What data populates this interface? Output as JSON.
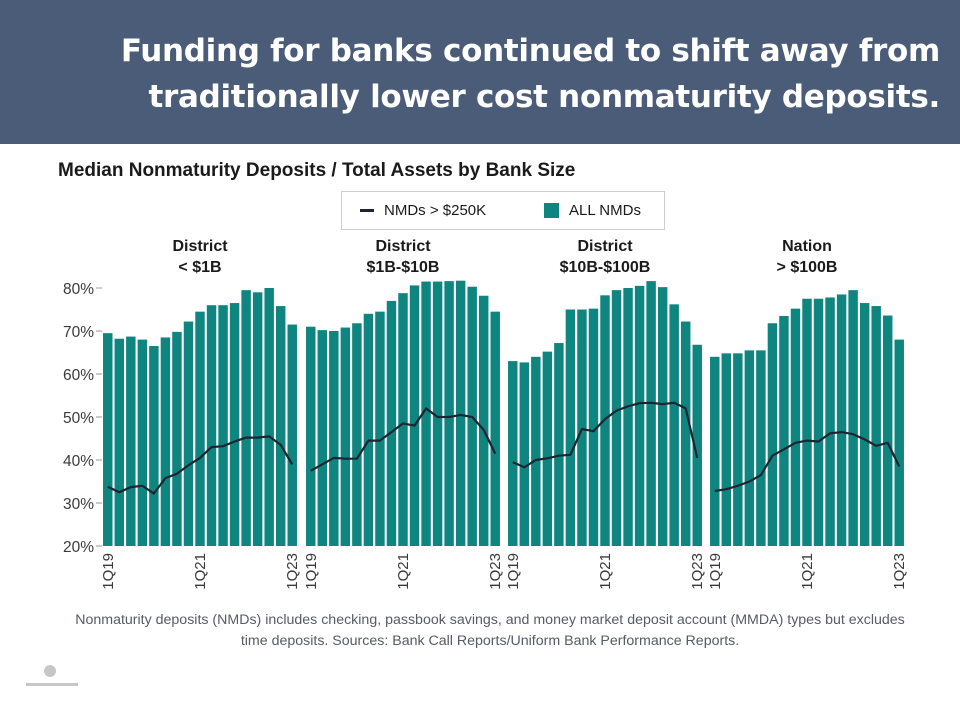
{
  "slide": {
    "headline": "Funding for banks continued to shift away from traditionally lower cost nonmaturity deposits.",
    "footnote": "Nonmaturity deposits (NMDs) includes checking, passbook savings, and money market deposit account (MMDA) types but excludes time deposits. Sources: Bank Call Reports/Uniform Bank Performance Reports."
  },
  "legend": {
    "line_label": "NMDs > $250K",
    "bar_label": "ALL NMDs"
  },
  "colors": {
    "bar": "#0f8580",
    "line": "#1f2433",
    "banner": "#4a5c78"
  },
  "chart_data": {
    "type": "bar",
    "title": "Median Nonmaturity Deposits / Total Assets by Bank Size",
    "ylim": [
      20,
      80
    ],
    "yticks": [
      "20%",
      "30%",
      "40%",
      "50%",
      "60%",
      "70%",
      "80%"
    ],
    "ytick_values": [
      20,
      30,
      40,
      50,
      60,
      70,
      80
    ],
    "grid": false,
    "legend_position": "top",
    "categories": [
      "1Q19",
      "2Q19",
      "3Q19",
      "4Q19",
      "1Q20",
      "2Q20",
      "3Q20",
      "4Q20",
      "1Q21",
      "2Q21",
      "3Q21",
      "4Q21",
      "1Q22",
      "2Q22",
      "3Q22",
      "4Q22",
      "1Q23"
    ],
    "xtick_labels": [
      "1Q19",
      "1Q21",
      "1Q23"
    ],
    "panels": [
      {
        "title_line1": "District",
        "title_line2": "< $1B",
        "series": [
          {
            "name": "ALL NMDs",
            "values": [
              69.5,
              68.2,
              68.7,
              68.0,
              66.5,
              68.5,
              69.8,
              72.2,
              74.5,
              76.0,
              76.0,
              76.5,
              79.5,
              79.0,
              80.0,
              75.8,
              71.5
            ]
          },
          {
            "name": "NMDs > $250K",
            "values": [
              33.8,
              32.5,
              33.7,
              34.0,
              32.2,
              35.8,
              36.8,
              38.8,
              40.5,
              43.0,
              43.2,
              44.3,
              45.2,
              45.2,
              45.5,
              43.5,
              39.0
            ]
          }
        ]
      },
      {
        "title_line1": "District",
        "title_line2": "$1B-$10B",
        "series": [
          {
            "name": "ALL NMDs",
            "values": [
              71.0,
              70.2,
              70.0,
              70.8,
              71.8,
              74.0,
              74.5,
              77.0,
              78.8,
              80.6,
              81.5,
              81.5,
              81.6,
              81.7,
              80.3,
              78.2,
              74.5
            ]
          },
          {
            "name": "NMDs > $250K",
            "values": [
              37.5,
              39.0,
              40.5,
              40.3,
              40.3,
              44.5,
              44.5,
              46.5,
              48.5,
              48.0,
              52.0,
              50.0,
              50.0,
              50.5,
              50.0,
              47.0,
              41.5
            ]
          }
        ]
      },
      {
        "title_line1": "District",
        "title_line2": "$10B-$100B",
        "series": [
          {
            "name": "ALL NMDs",
            "values": [
              63.0,
              62.7,
              64.0,
              65.2,
              67.2,
              75.0,
              75.0,
              75.2,
              78.3,
              79.5,
              80.0,
              80.5,
              81.6,
              80.2,
              76.2,
              72.2,
              66.8
            ]
          },
          {
            "name": "NMDs > $250K",
            "values": [
              39.5,
              38.3,
              40.0,
              40.4,
              41.0,
              41.2,
              47.2,
              46.7,
              49.5,
              51.5,
              52.5,
              53.2,
              53.3,
              53.0,
              53.3,
              52.0,
              40.5
            ]
          }
        ]
      },
      {
        "title_line1": "Nation",
        "title_line2": "> $100B",
        "series": [
          {
            "name": "ALL NMDs",
            "values": [
              64.0,
              64.8,
              64.8,
              65.5,
              65.5,
              71.8,
              73.5,
              75.2,
              77.5,
              77.5,
              77.8,
              78.5,
              79.5,
              76.5,
              75.8,
              73.6,
              68.0
            ]
          },
          {
            "name": "NMDs > $250K",
            "values": [
              32.8,
              33.2,
              34.0,
              35.0,
              36.5,
              41.0,
              42.5,
              44.0,
              44.5,
              44.3,
              46.2,
              46.5,
              46.0,
              44.8,
              43.3,
              44.0,
              38.5
            ]
          }
        ]
      }
    ]
  }
}
